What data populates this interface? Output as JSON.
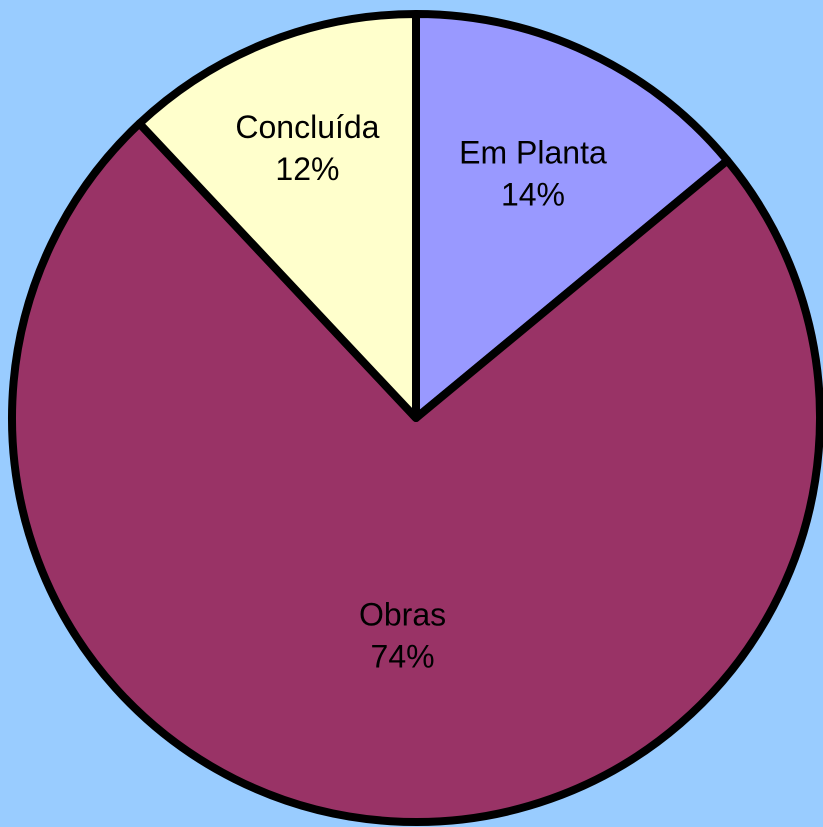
{
  "background_color": "#99ccff",
  "chart_data": {
    "type": "pie",
    "start_angle_deg": 0,
    "direction": "clockwise",
    "slices": [
      {
        "label": "Em Planta",
        "value": 14,
        "value_label": "14%",
        "color": "#9999ff",
        "text_color": "#000000"
      },
      {
        "label": "Obras",
        "value": 74,
        "value_label": "74%",
        "color": "#993366",
        "text_color": "#000000"
      },
      {
        "label": "Concluída",
        "value": 12,
        "value_label": "12%",
        "color": "#ffffcc",
        "text_color": "#000000"
      }
    ],
    "border_color": "#000000",
    "title": "",
    "legend": "none"
  }
}
